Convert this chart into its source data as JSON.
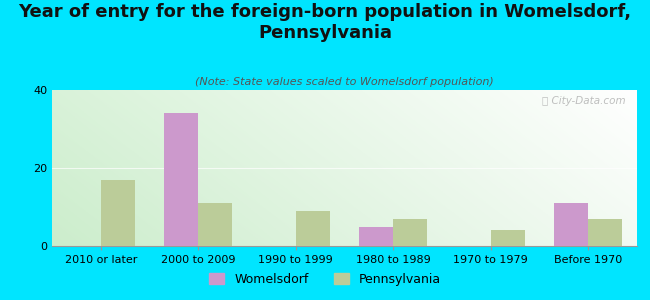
{
  "title": "Year of entry for the foreign-born population in Womelsdorf,\nPennsylvania",
  "subtitle": "(Note: State values scaled to Womelsdorf population)",
  "categories": [
    "2010 or later",
    "2000 to 2009",
    "1990 to 1999",
    "1980 to 1989",
    "1970 to 1979",
    "Before 1970"
  ],
  "womelsdorf": [
    0,
    34,
    0,
    5,
    0,
    11
  ],
  "pennsylvania": [
    17,
    11,
    9,
    7,
    4,
    7
  ],
  "womelsdorf_color": "#cc99cc",
  "pennsylvania_color": "#bbcc99",
  "background_color": "#00e5ff",
  "ylim": [
    0,
    40
  ],
  "yticks": [
    0,
    20,
    40
  ],
  "watermark": "ⓘ City-Data.com",
  "bar_width": 0.35,
  "title_fontsize": 13,
  "subtitle_fontsize": 8,
  "axis_fontsize": 8,
  "legend_fontsize": 9
}
